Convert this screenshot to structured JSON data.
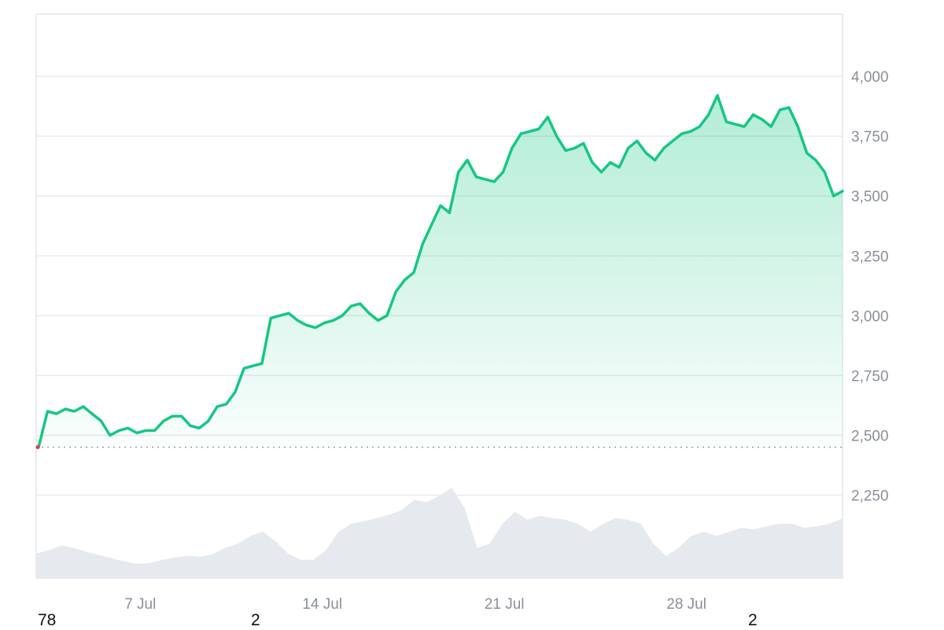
{
  "chart_data": {
    "type": "area",
    "series": [
      {
        "x_start": "2024-07-03",
        "x_end": "2024-08-03",
        "values": [
          2450,
          2600,
          2590,
          2610,
          2600,
          2620,
          2590,
          2560,
          2500,
          2520,
          2530,
          2510,
          2520,
          2520,
          2560,
          2580,
          2580,
          2540,
          2530,
          2560,
          2620,
          2630,
          2680,
          2780,
          2790,
          2800,
          2990,
          3000,
          3010,
          2980,
          2960,
          2950,
          2970,
          2980,
          3000,
          3040,
          3050,
          3010,
          2980,
          3000,
          3100,
          3150,
          3180,
          3300,
          3380,
          3460,
          3430,
          3600,
          3650,
          3580,
          3570,
          3560,
          3600,
          3700,
          3760,
          3770,
          3780,
          3830,
          3750,
          3690,
          3700,
          3720,
          3640,
          3600,
          3640,
          3620,
          3700,
          3730,
          3680,
          3650,
          3700,
          3730,
          3760,
          3770,
          3790,
          3840,
          3920,
          3810,
          3800,
          3790,
          3840,
          3820,
          3790,
          3860,
          3870,
          3790,
          3680,
          3650,
          3600,
          3500,
          3520
        ],
        "color": "#16c784"
      },
      {
        "name": "volume",
        "values": [
          0.18,
          0.22,
          0.28,
          0.25,
          0.2,
          0.16,
          0.12,
          0.08,
          0.05,
          0.06,
          0.1,
          0.13,
          0.15,
          0.14,
          0.17,
          0.25,
          0.3,
          0.4,
          0.45,
          0.33,
          0.18,
          0.1,
          0.1,
          0.22,
          0.45,
          0.55,
          0.58,
          0.62,
          0.66,
          0.72,
          0.85,
          0.82,
          0.9,
          1.0,
          0.75,
          0.25,
          0.3,
          0.55,
          0.7,
          0.6,
          0.65,
          0.62,
          0.6,
          0.55,
          0.45,
          0.55,
          0.62,
          0.6,
          0.55,
          0.3,
          0.15,
          0.25,
          0.4,
          0.45,
          0.4,
          0.45,
          0.5,
          0.48,
          0.52,
          0.55,
          0.55,
          0.5,
          0.52,
          0.55,
          0.62
        ],
        "color": "#e6e9ee"
      }
    ],
    "baseline": 2450,
    "y_ticks": [
      "4,000",
      "3,750",
      "3,500",
      "3,250",
      "3,000",
      "2,750",
      "2,500",
      "2,250"
    ],
    "y_tick_values": [
      4000,
      3750,
      3500,
      3250,
      3000,
      2750,
      2500,
      2250
    ],
    "x_ticks": [
      "7 Jul",
      "14 Jul",
      "21 Jul",
      "28 Jul"
    ],
    "x_tick_dates": [
      "2024-07-07",
      "2024-07-14",
      "2024-07-21",
      "2024-07-28"
    ],
    "ylim": [
      1900,
      4260
    ],
    "grid": true,
    "colors": {
      "line": "#16c784",
      "area_top": "#16c784",
      "baseline": "#9aa0a6",
      "grid": "#e8eaed",
      "volume": "#e6e9ee"
    }
  },
  "footer": {
    "left": "78",
    "middle": "2",
    "right": "2"
  }
}
